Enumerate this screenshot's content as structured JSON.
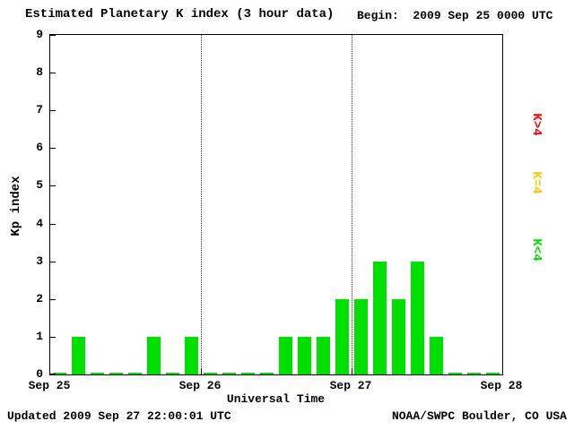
{
  "header": {
    "title": "Estimated Planetary K index (3 hour data)",
    "begin": "Begin:  2009 Sep 25 0000 UTC"
  },
  "chart_data": {
    "type": "bar",
    "title": "Estimated Planetary K index (3 hour data)",
    "xlabel": "Universal Time",
    "ylabel": "Kp index",
    "ylim": [
      0,
      9
    ],
    "y_ticks": [
      0,
      1,
      2,
      3,
      4,
      5,
      6,
      7,
      8,
      9
    ],
    "x_tick_labels": [
      "Sep 25",
      "Sep 26",
      "Sep 27",
      "Sep 28"
    ],
    "bar_color": "#00e000",
    "grid": "dotted vertical lines at day boundaries",
    "legend_position": "right",
    "categories": [
      "Sep 25 0000",
      "Sep 25 0300",
      "Sep 25 0600",
      "Sep 25 0900",
      "Sep 25 1200",
      "Sep 25 1500",
      "Sep 25 1800",
      "Sep 25 2100",
      "Sep 26 0000",
      "Sep 26 0300",
      "Sep 26 0600",
      "Sep 26 0900",
      "Sep 26 1200",
      "Sep 26 1500",
      "Sep 26 1800",
      "Sep 26 2100",
      "Sep 27 0000",
      "Sep 27 0300",
      "Sep 27 0600",
      "Sep 27 0900",
      "Sep 27 1200",
      "Sep 27 1500",
      "Sep 27 1800",
      "Sep 27 2100"
    ],
    "values": [
      0,
      1,
      0,
      0,
      0,
      1,
      0,
      1,
      0,
      0,
      0,
      0,
      1,
      1,
      1,
      2,
      2,
      3,
      2,
      3,
      1,
      0,
      0,
      0
    ]
  },
  "legend": [
    {
      "label": "K>4",
      "color": "#ff0000"
    },
    {
      "label": "K=4",
      "color": "#ffc800"
    },
    {
      "label": "K<4",
      "color": "#00e000"
    }
  ],
  "footer": {
    "updated": "Updated 2009 Sep 27 22:00:01 UTC",
    "attribution": "NOAA/SWPC Boulder, CO USA"
  }
}
